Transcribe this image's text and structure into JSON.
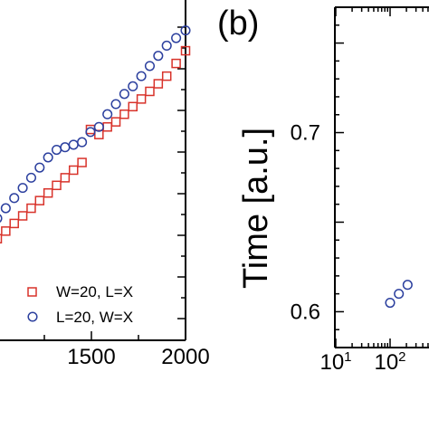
{
  "colors": {
    "series_a": "#d8322a",
    "series_b": "#2b3f9e",
    "axes": "#000000"
  },
  "chart_data": [
    {
      "type": "scatter",
      "xlim": [
        1000,
        2000
      ],
      "xticks": [
        1500,
        2000
      ],
      "xtick_labels": [
        "1500",
        "2000"
      ],
      "grid": false,
      "legend_position": "bottom-right",
      "series": [
        {
          "name": "W=20, L=X",
          "marker": "square",
          "color": "#d8322a",
          "x": [
            1000,
            1045,
            1090,
            1135,
            1180,
            1225,
            1270,
            1315,
            1360,
            1405,
            1450,
            1495,
            1540,
            1585,
            1630,
            1675,
            1720,
            1765,
            1810,
            1855,
            1900,
            1950,
            2000
          ],
          "y": [
            0.2,
            0.215,
            0.23,
            0.245,
            0.26,
            0.275,
            0.29,
            0.305,
            0.32,
            0.335,
            0.35,
            0.415,
            0.405,
            0.42,
            0.43,
            0.445,
            0.46,
            0.475,
            0.49,
            0.505,
            0.52,
            0.545,
            0.57
          ]
        },
        {
          "name": "L=20, W=X",
          "marker": "circle",
          "color": "#2b3f9e",
          "x": [
            1000,
            1045,
            1090,
            1135,
            1180,
            1225,
            1270,
            1315,
            1360,
            1405,
            1450,
            1495,
            1540,
            1585,
            1630,
            1675,
            1720,
            1765,
            1810,
            1855,
            1900,
            1950,
            2000
          ],
          "y": [
            0.24,
            0.26,
            0.28,
            0.3,
            0.32,
            0.34,
            0.36,
            0.375,
            0.38,
            0.385,
            0.39,
            0.41,
            0.42,
            0.445,
            0.465,
            0.485,
            0.5,
            0.52,
            0.54,
            0.56,
            0.58,
            0.595,
            0.61
          ]
        }
      ]
    },
    {
      "type": "scatter",
      "panel_label": "(b)",
      "ylabel": "Time [a.u.]",
      "ylim": [
        0.58,
        0.77
      ],
      "yticks": [
        0.6,
        0.7
      ],
      "ytick_labels": [
        "0.6",
        "0.7"
      ],
      "xscale": "log",
      "xlim": [
        10,
        1000
      ],
      "xtick_labels": [
        {
          "base": "10",
          "exp": "1",
          "value": 10
        },
        {
          "base": "10",
          "exp": "2",
          "value": 100
        }
      ],
      "grid": false,
      "series": [
        {
          "marker": "circle",
          "color": "#2b3f9e",
          "x": [
            100,
            145,
            210
          ],
          "y": [
            0.605,
            0.61,
            0.615
          ]
        }
      ]
    }
  ]
}
